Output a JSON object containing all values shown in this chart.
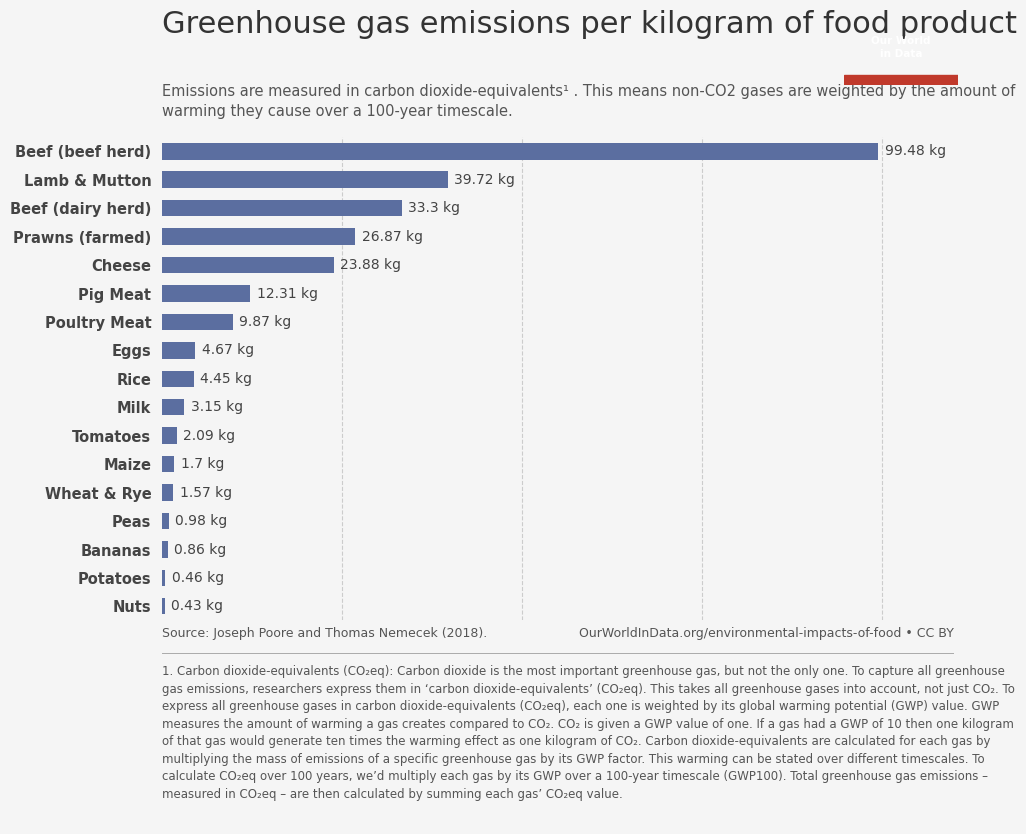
{
  "title": "Greenhouse gas emissions per kilogram of food product",
  "subtitle": "Emissions are measured in carbon dioxide-equivalents¹ . This means non-CO2 gases are weighted by the amount of\nwarming they cause over a 100-year timescale.",
  "categories": [
    "Beef (beef herd)",
    "Lamb & Mutton",
    "Beef (dairy herd)",
    "Prawns (farmed)",
    "Cheese",
    "Pig Meat",
    "Poultry Meat",
    "Eggs",
    "Rice",
    "Milk",
    "Tomatoes",
    "Maize",
    "Wheat & Rye",
    "Peas",
    "Bananas",
    "Potatoes",
    "Nuts"
  ],
  "values": [
    99.48,
    39.72,
    33.3,
    26.87,
    23.88,
    12.31,
    9.87,
    4.67,
    4.45,
    3.15,
    2.09,
    1.7,
    1.57,
    0.98,
    0.86,
    0.46,
    0.43
  ],
  "bar_color": "#5b6ea0",
  "background_color": "#f5f5f5",
  "source_left": "Source: Joseph Poore and Thomas Nemecek (2018).",
  "source_right": "OurWorldInData.org/environmental-impacts-of-food • CC BY",
  "footnote_bold": "1. Carbon dioxide-equivalents (CO₂eq):",
  "footnote_rest": " Carbon dioxide is the most important greenhouse gas, but not the only one. To capture all greenhouse gas emissions, researchers express them in ‘carbon dioxide-equivalents’ (CO₂eq). This takes all greenhouse gases into account, not just CO₂. To express all greenhouse gases in carbon dioxide-equivalents (CO₂eq), each one is weighted by its global warming potential (GWP) value. GWP measures the amount of warming a gas creates compared to CO₂. CO₂ is given a GWP value of one. If a gas had a GWP of 10 then one kilogram of that gas would generate ten times the warming effect as one kilogram of CO₂. Carbon dioxide-equivalents are calculated for each gas by multiplying the mass of emissions of a specific greenhouse gas by its GWP factor. This warming can be stated over different timescales. To calculate CO₂eq over 100 years, we’d multiply each gas by its GWP over a 100-year timescale (GWP100). Total greenhouse gas emissions – measured in CO₂eq – are then calculated by summing each gas’ CO₂eq value.",
  "logo_bg_top": "#1a3a5c",
  "logo_bg_bottom": "#c0392b",
  "logo_text": "Our World\nin Data",
  "xlim": [
    0,
    110
  ],
  "grid_values": [
    25,
    50,
    75,
    100
  ],
  "title_fontsize": 22,
  "subtitle_fontsize": 10.5,
  "label_fontsize": 10.5,
  "value_fontsize": 10,
  "source_fontsize": 9,
  "footnote_fontsize": 8.5
}
